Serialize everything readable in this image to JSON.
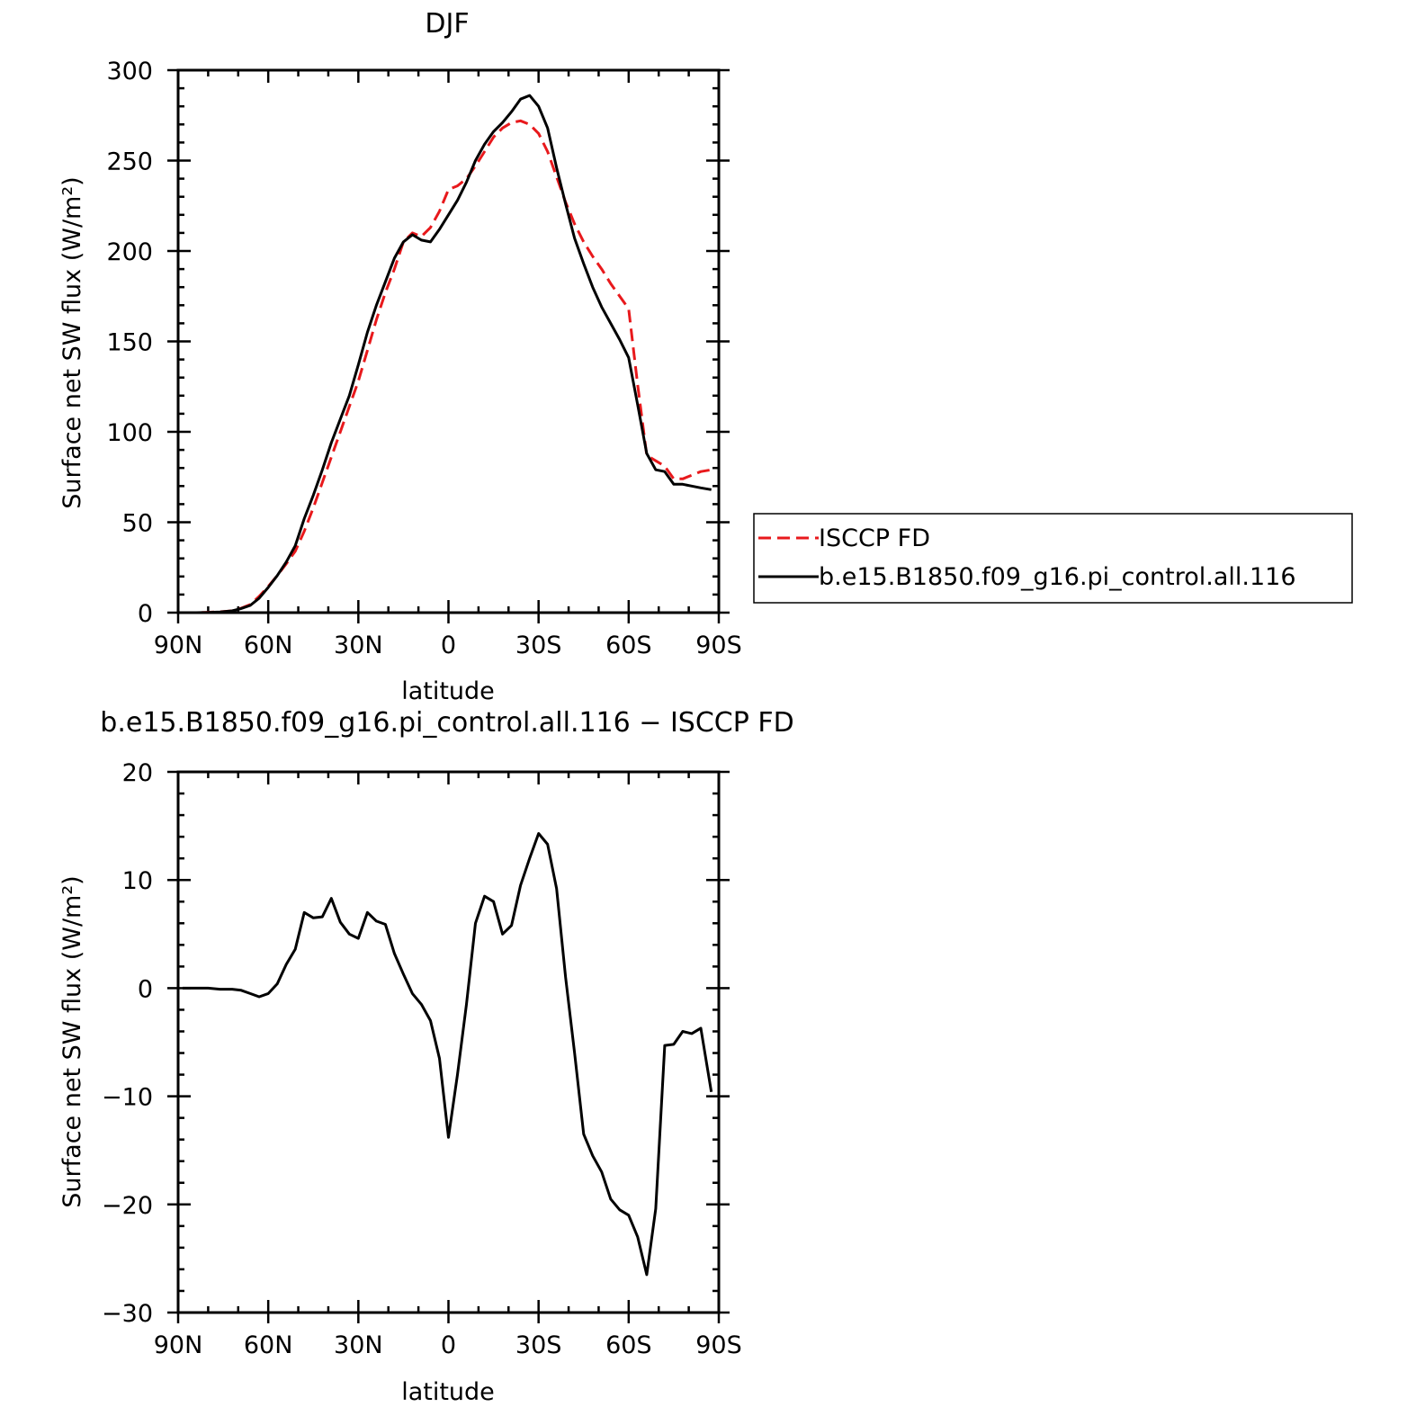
{
  "figure": {
    "top_title": "DJF",
    "bottom_title": "b.e15.B1850.f09_g16.pi_control.all.116 − ISCCP FD"
  },
  "chart_data": [
    {
      "type": "line",
      "title": "DJF",
      "xlabel": "latitude",
      "ylabel": "Surface net SW flux (W/m²)",
      "xticks": [
        "90N",
        "60N",
        "30N",
        "0",
        "30S",
        "60S",
        "90S"
      ],
      "yticks": [
        "0",
        "50",
        "100",
        "150",
        "200",
        "250",
        "300"
      ],
      "xlim": [
        -90,
        90
      ],
      "ylim": [
        0,
        300
      ],
      "grid": false,
      "legend_position": "right",
      "series": [
        {
          "name": "ISCCP FD",
          "color": "#e8191c",
          "style": "dashed",
          "x": [
            -88.5,
            -84,
            -80,
            -76,
            -72,
            -69,
            -66,
            -63,
            -60,
            -57,
            -54,
            -51,
            -48,
            -45,
            -42,
            -39,
            -36,
            -33,
            -30,
            -27,
            -24,
            -21,
            -18,
            -15,
            -12,
            -9,
            -6,
            -3,
            0,
            3,
            6,
            9,
            12,
            15,
            18,
            21,
            24,
            27,
            30,
            33,
            36,
            39,
            42,
            45,
            48,
            51,
            54,
            57,
            60,
            63,
            66,
            69,
            72,
            75,
            78,
            81,
            84,
            87.5
          ],
          "values": [
            0,
            0,
            0.2,
            0.5,
            1,
            2.5,
            4.5,
            9,
            14.5,
            20.5,
            27,
            34,
            45,
            58,
            72,
            86,
            100,
            114,
            128,
            145,
            162,
            177,
            190,
            205,
            210,
            208,
            213,
            222,
            234,
            236,
            240,
            247,
            255,
            263,
            268,
            271,
            272,
            270,
            265,
            255,
            241,
            227,
            215,
            205,
            197,
            190,
            182,
            175,
            168,
            126,
            87,
            84,
            81,
            74,
            74,
            76,
            78,
            79
          ]
        },
        {
          "name": "b.e15.B1850.f09_g16.pi_control.all.116",
          "color": "#000000",
          "style": "solid",
          "x": [
            -88.5,
            -84,
            -80,
            -76,
            -72,
            -69,
            -66,
            -63,
            -60,
            -57,
            -54,
            -51,
            -48,
            -45,
            -42,
            -39,
            -36,
            -33,
            -30,
            -27,
            -24,
            -21,
            -18,
            -15,
            -12,
            -9,
            -6,
            -3,
            0,
            3,
            6,
            9,
            12,
            15,
            18,
            21,
            24,
            27,
            30,
            33,
            36,
            39,
            42,
            45,
            48,
            51,
            54,
            57,
            60,
            63,
            66,
            69,
            72,
            75,
            78,
            81,
            84,
            87.5
          ],
          "values": [
            0,
            0,
            0.1,
            0.4,
            1,
            2.3,
            4,
            8,
            14,
            20.5,
            28,
            37,
            52,
            65,
            79,
            94,
            107,
            120,
            137,
            155,
            170,
            183,
            196,
            205,
            209,
            206,
            205,
            212,
            220,
            228,
            238,
            250,
            259,
            266,
            271,
            277,
            284,
            286,
            280,
            268,
            246,
            226,
            207,
            193,
            180,
            169,
            160,
            151,
            141,
            115,
            88,
            79,
            78,
            71,
            71,
            70,
            69,
            68
          ]
        }
      ]
    },
    {
      "type": "line",
      "title": "b.e15.B1850.f09_g16.pi_control.all.116 − ISCCP FD",
      "xlabel": "latitude",
      "ylabel": "Surface net SW flux (W/m²)",
      "xticks": [
        "90N",
        "60N",
        "30N",
        "0",
        "30S",
        "60S",
        "90S"
      ],
      "yticks": [
        "−30",
        "−20",
        "−10",
        "0",
        "10",
        "20"
      ],
      "xlim": [
        -90,
        90
      ],
      "ylim": [
        -30,
        20
      ],
      "grid": false,
      "series": [
        {
          "name": "b.e15.B1850.f09_g16.pi_control.all.116 − ISCCP FD",
          "color": "#000000",
          "style": "solid",
          "x": [
            -88.5,
            -84,
            -80,
            -76,
            -72,
            -69,
            -66,
            -63,
            -60,
            -57,
            -54,
            -51,
            -48,
            -45,
            -42,
            -39,
            -36,
            -33,
            -30,
            -27,
            -24,
            -21,
            -18,
            -15,
            -12,
            -9,
            -6,
            -3,
            0,
            3,
            6,
            9,
            12,
            15,
            18,
            21,
            24,
            27,
            30,
            33,
            36,
            39,
            42,
            45,
            48,
            51,
            54,
            57,
            60,
            63,
            66,
            69,
            72,
            75,
            78,
            81,
            84,
            87.5
          ],
          "values": [
            0,
            0,
            0,
            -0.1,
            -0.1,
            -0.2,
            -0.5,
            -0.8,
            -0.5,
            0.4,
            2.2,
            3.6,
            7,
            6.5,
            6.6,
            8.3,
            6.1,
            5.0,
            4.6,
            7.0,
            6.2,
            5.9,
            3.2,
            1.3,
            -0.5,
            -1.5,
            -3.0,
            -6.5,
            -13.8,
            -8.0,
            -1.5,
            6.0,
            8.5,
            8.0,
            5.0,
            5.8,
            9.5,
            12.0,
            14.3,
            13.3,
            9.2,
            1.0,
            -6.0,
            -13.5,
            -15.5,
            -17.0,
            -19.5,
            -20.5,
            -21.0,
            -23.0,
            -26.5,
            -20.4,
            -5.3,
            -5.2,
            -4.0,
            -4.2,
            -3.7,
            -9.6
          ]
        }
      ]
    }
  ]
}
